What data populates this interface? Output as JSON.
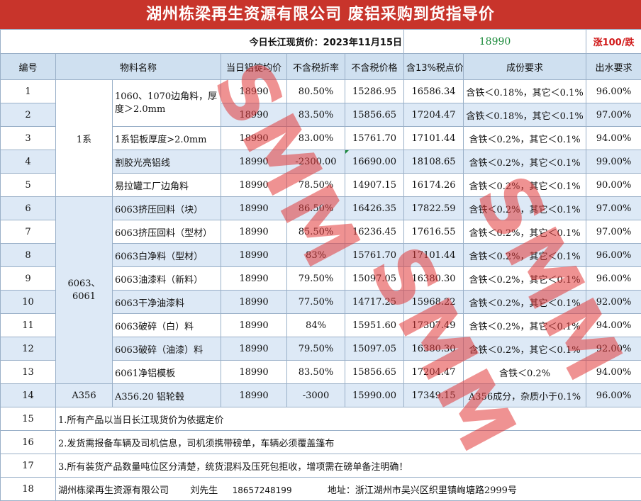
{
  "title": "湖州栋梁再生资源有限公司 废铝采购到货指导价",
  "price_bar": {
    "label": "今日长江现货价：2023年11月15日",
    "price": "18990",
    "change": "涨100/跌"
  },
  "headers": [
    "编号",
    "物料名称",
    "当日铝锭均价",
    "不含税折率",
    "不含税价格",
    "含13%税点价",
    "成份要求",
    "出水要求"
  ],
  "groups": {
    "g1": "1系",
    "g2": "6063、6061",
    "g3": "A356"
  },
  "rows": [
    {
      "no": "1",
      "name": "1060、1070边角料，厚度＞2.0mm",
      "avg": "18990",
      "rate": "80.50%",
      "ex": "15286.95",
      "inc": "16586.34",
      "comp": "含铁＜0.18%，其它＜0.1%",
      "water": "96.00%"
    },
    {
      "no": "2",
      "name": "",
      "avg": "18990",
      "rate": "83.50%",
      "ex": "15856.65",
      "inc": "17204.47",
      "comp": "含铁＜0.18%，其它＜0.1%",
      "water": "97.00%"
    },
    {
      "no": "3",
      "name": "1系铝板厚度>2.0mm",
      "avg": "18990",
      "rate": "83.00%",
      "ex": "15761.70",
      "inc": "17101.44",
      "comp": "含铁＜0.2%，其它＜0.1%",
      "water": "94.00%"
    },
    {
      "no": "4",
      "name": "割胶光亮铝线",
      "avg": "18990",
      "rate": "-2300.00",
      "ex": "16690.00",
      "inc": "18108.65",
      "comp": "含铁＜0.2%，其它＜0.1%",
      "water": "99.00%"
    },
    {
      "no": "5",
      "name": "易拉罐工厂边角料",
      "avg": "18990",
      "rate": "78.50%",
      "ex": "14907.15",
      "inc": "16174.26",
      "comp": "含铁＜0.2%，其它＜0.1%",
      "water": "90.00%"
    },
    {
      "no": "6",
      "name": "6063挤压回料（块）",
      "avg": "18990",
      "rate": "86.50%",
      "ex": "16426.35",
      "inc": "17822.59",
      "comp": "含铁＜0.2%，其它＜0.1%",
      "water": "97.00%"
    },
    {
      "no": "7",
      "name": "6063挤压回料（型材）",
      "avg": "18990",
      "rate": "85.50%",
      "ex": "16236.45",
      "inc": "17616.55",
      "comp": "含铁＜0.2%，其它＜0.1%",
      "water": "97.00%"
    },
    {
      "no": "8",
      "name": "6063白净料（型材）",
      "avg": "18990",
      "rate": "83%",
      "ex": "15761.70",
      "inc": "17101.44",
      "comp": "含铁＜0.2%，其它＜0.1%",
      "water": "96.00%"
    },
    {
      "no": "9",
      "name": "6063油漆料（新料）",
      "avg": "18990",
      "rate": "79.50%",
      "ex": "15097.05",
      "inc": "16380.30",
      "comp": "含铁＜0.2%，其它＜0.1%",
      "water": "96.00%"
    },
    {
      "no": "10",
      "name": "6063干净油漆料",
      "avg": "18990",
      "rate": "77.50%",
      "ex": "14717.25",
      "inc": "15968.22",
      "comp": "含铁＜0.2%，其它＜0.1%",
      "water": "92.00%"
    },
    {
      "no": "11",
      "name": "6063破碎（白）料",
      "avg": "18990",
      "rate": "84%",
      "ex": "15951.60",
      "inc": "17307.49",
      "comp": "含铁＜0.2%，其它＜0.1%",
      "water": "94.00%"
    },
    {
      "no": "12",
      "name": "6063破碎（油漆）料",
      "avg": "18990",
      "rate": "79.50%",
      "ex": "15097.05",
      "inc": "16380.30",
      "comp": "含铁＜0.2%，其它＜0.1%",
      "water": "92.00%"
    },
    {
      "no": "13",
      "name": "6061净铝模板",
      "avg": "18990",
      "rate": "83.50%",
      "ex": "15856.65",
      "inc": "17204.47",
      "comp": "含铁＜0.2%",
      "water": "94.00%"
    },
    {
      "no": "14",
      "name": "A356.20 铝轮毂",
      "avg": "18990",
      "rate": "-3000",
      "ex": "15990.00",
      "inc": "17349.15",
      "comp": "A356成分，杂质小于0.1%",
      "water": "96.00%"
    }
  ],
  "notes": [
    {
      "no": "15",
      "text": "1.所有产品以当日长江现货价为依据定价"
    },
    {
      "no": "16",
      "text": "2.发货需报备车辆及司机信息，司机须携带磅单，车辆必须覆盖篷布"
    },
    {
      "no": "17",
      "text": "3.所有装货产品数量吨位区分清楚，统货混料及压死包拒收，增项需在磅单备注明确！"
    }
  ],
  "contact": {
    "no": "18",
    "company": "湖州栋梁再生资源有限公司",
    "person": "刘先生",
    "phone": "18657248199",
    "address": "地址：浙江湖州市吴兴区织里镇峋塘路2999号"
  },
  "watermark": "SMM",
  "colors": {
    "title_bg": "#c8342b",
    "header_bg": "#cfe0f0",
    "price": "#1a8a3a",
    "change": "#d01818"
  }
}
